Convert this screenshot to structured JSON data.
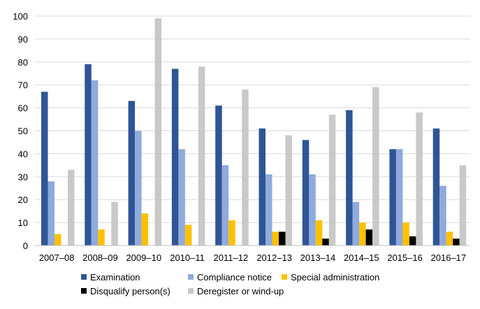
{
  "chart_data": {
    "type": "bar",
    "title": "",
    "xlabel": "",
    "ylabel": "",
    "ylim": [
      0,
      100
    ],
    "yticks": [
      0,
      10,
      20,
      30,
      40,
      50,
      60,
      70,
      80,
      90,
      100
    ],
    "grid": true,
    "legend_position": "bottom",
    "categories": [
      "2007–08",
      "2008–09",
      "2009–10",
      "2010–11",
      "2011–12",
      "2012–13",
      "2013–14",
      "2014–15",
      "2015–16",
      "2016–17"
    ],
    "series": [
      {
        "name": "Examination",
        "color": "#2F5597",
        "values": [
          67,
          79,
          63,
          77,
          61,
          51,
          46,
          59,
          42,
          51
        ]
      },
      {
        "name": "Compliance notice",
        "color": "#8FAADC",
        "values": [
          28,
          72,
          50,
          42,
          35,
          31,
          31,
          19,
          42,
          26
        ]
      },
      {
        "name": "Special administration",
        "color": "#FFC000",
        "values": [
          5,
          7,
          14,
          9,
          11,
          6,
          11,
          10,
          10,
          6
        ]
      },
      {
        "name": "Disqualify person(s)",
        "color": "#000000",
        "values": [
          0,
          0,
          0,
          0,
          0,
          6,
          3,
          7,
          4,
          3
        ]
      },
      {
        "name": "Deregister or wind-up",
        "color": "#C9C9C9",
        "values": [
          33,
          19,
          99,
          78,
          68,
          48,
          57,
          69,
          58,
          35
        ]
      }
    ]
  }
}
